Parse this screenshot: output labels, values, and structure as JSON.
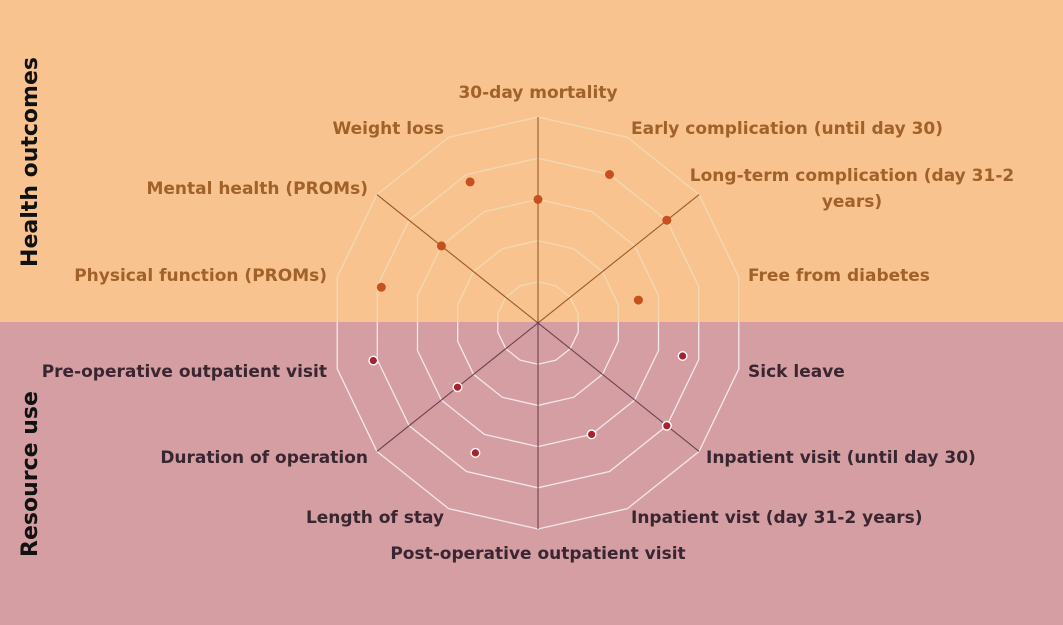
{
  "colors": {
    "top_band": "#f8c38f",
    "bottom_band": "#d59ea3",
    "top_text": "#a0622a",
    "bottom_text": "#3a2630",
    "top_marker": "#c8501f",
    "bottom_marker": "#a8232e",
    "grid_top": "#f2d9b3",
    "grid_bottom": "#f3e7ea",
    "axis_top": "#9a5a2a",
    "axis_bottom": "#6a4450"
  },
  "groups": {
    "health": "Health outcomes",
    "resource": "Resource use"
  },
  "chart_data": {
    "type": "radar",
    "rings": 5,
    "max": 5,
    "grid": true,
    "categories": [
      "30-day mortality",
      "Early complication (until day 30)",
      "Long-term complication (day 31-2 years)",
      "Free from diabetes",
      "Sick leave",
      "Inpatient visit (until day 30)",
      "Inpatient vist (day 31-2 years)",
      "Post-operative outpatient visit",
      "Length of stay",
      "Duration of operation",
      "Pre-operative outpatient visit",
      "Physical function (PROMs)",
      "Mental health (PROMs)",
      "Weight loss"
    ],
    "groups": [
      "health",
      "health",
      "health",
      "health",
      "resource",
      "resource",
      "resource",
      "resource",
      "resource",
      "resource",
      "resource",
      "health",
      "health",
      "health"
    ],
    "values": [
      3.0,
      4.0,
      4.0,
      2.5,
      3.6,
      4.0,
      3.0,
      0,
      3.5,
      2.5,
      4.1,
      3.9,
      3.0,
      3.8
    ]
  }
}
